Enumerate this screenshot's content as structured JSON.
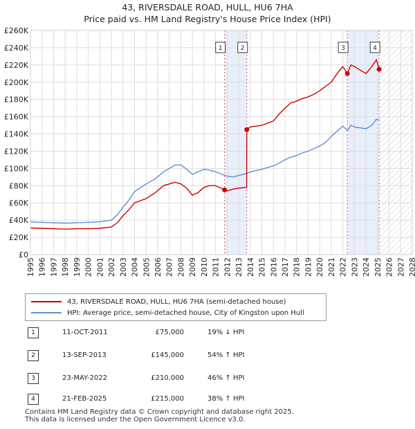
{
  "header": {
    "title": "43, RIVERSDALE ROAD, HULL, HU6 7HA",
    "subtitle": "Price paid vs. HM Land Registry's House Price Index (HPI)"
  },
  "chart_data": {
    "type": "line",
    "title": "43, RIVERSDALE ROAD, HULL, HU6 7HA",
    "subtitle": "Price paid vs. HM Land Registry's House Price Index (HPI)",
    "xlim": [
      1995,
      2028
    ],
    "ylim": [
      0,
      260000
    ],
    "x_ticks": [
      1995,
      1996,
      1997,
      1998,
      1999,
      2000,
      2001,
      2002,
      2003,
      2004,
      2005,
      2006,
      2007,
      2008,
      2009,
      2010,
      2011,
      2012,
      2013,
      2014,
      2015,
      2016,
      2017,
      2018,
      2019,
      2020,
      2021,
      2022,
      2023,
      2024,
      2025,
      2026,
      2027,
      2028
    ],
    "y_ticks": [
      0,
      20000,
      40000,
      60000,
      80000,
      100000,
      120000,
      140000,
      160000,
      180000,
      200000,
      220000,
      240000,
      260000
    ],
    "y_tick_labels": [
      "£0",
      "£20K",
      "£40K",
      "£60K",
      "£80K",
      "£100K",
      "£120K",
      "£140K",
      "£160K",
      "£180K",
      "£200K",
      "£220K",
      "£240K",
      "£260K"
    ],
    "grid": true,
    "series": [
      {
        "name": "43, RIVERSDALE ROAD, HULL, HU6 7HA (semi-detached house)",
        "color": "#cc0000",
        "points": [
          [
            1995.0,
            31000
          ],
          [
            1996.0,
            30500
          ],
          [
            1997.0,
            30000
          ],
          [
            1998.0,
            29500
          ],
          [
            1999.0,
            30000
          ],
          [
            2000.0,
            30000
          ],
          [
            2001.0,
            30500
          ],
          [
            2002.0,
            32000
          ],
          [
            2002.5,
            37000
          ],
          [
            2003.0,
            45000
          ],
          [
            2003.5,
            52000
          ],
          [
            2004.0,
            60000
          ],
          [
            2005.0,
            65000
          ],
          [
            2005.8,
            72000
          ],
          [
            2006.5,
            80000
          ],
          [
            2007.5,
            84000
          ],
          [
            2008.0,
            82000
          ],
          [
            2008.5,
            77000
          ],
          [
            2009.0,
            69000
          ],
          [
            2009.5,
            72000
          ],
          [
            2010.0,
            78000
          ],
          [
            2010.5,
            80000
          ],
          [
            2011.0,
            80000
          ],
          [
            2011.78,
            75000
          ],
          [
            2012.0,
            74000
          ],
          [
            2012.5,
            76000
          ],
          [
            2013.0,
            77000
          ],
          [
            2013.69,
            78000
          ],
          [
            2013.7,
            145000
          ],
          [
            2014.0,
            148000
          ],
          [
            2015.0,
            150000
          ],
          [
            2016.0,
            155000
          ],
          [
            2016.5,
            163000
          ],
          [
            2017.0,
            170000
          ],
          [
            2017.5,
            176000
          ],
          [
            2018.0,
            178000
          ],
          [
            2018.5,
            181000
          ],
          [
            2019.0,
            183000
          ],
          [
            2019.5,
            186000
          ],
          [
            2020.0,
            190000
          ],
          [
            2020.5,
            195000
          ],
          [
            2021.0,
            200000
          ],
          [
            2021.5,
            210000
          ],
          [
            2022.0,
            218000
          ],
          [
            2022.39,
            210000
          ],
          [
            2022.7,
            220000
          ],
          [
            2023.0,
            218000
          ],
          [
            2023.5,
            214000
          ],
          [
            2024.0,
            210000
          ],
          [
            2024.5,
            218000
          ],
          [
            2024.9,
            226000
          ],
          [
            2025.14,
            215000
          ]
        ]
      },
      {
        "name": "HPI: Average price, semi-detached house, City of Kingston upon Hull",
        "color": "#5b8fd1",
        "points": [
          [
            1995.0,
            38000
          ],
          [
            1996.0,
            37500
          ],
          [
            1997.0,
            37000
          ],
          [
            1998.0,
            36500
          ],
          [
            1999.0,
            37000
          ],
          [
            2000.0,
            37500
          ],
          [
            2001.0,
            38000
          ],
          [
            2002.0,
            40000
          ],
          [
            2002.5,
            46000
          ],
          [
            2003.0,
            55000
          ],
          [
            2003.5,
            63000
          ],
          [
            2004.0,
            73000
          ],
          [
            2005.0,
            82000
          ],
          [
            2005.8,
            88000
          ],
          [
            2006.5,
            96000
          ],
          [
            2007.5,
            104000
          ],
          [
            2008.0,
            104000
          ],
          [
            2008.5,
            99000
          ],
          [
            2009.0,
            93000
          ],
          [
            2009.5,
            96000
          ],
          [
            2010.0,
            99000
          ],
          [
            2010.5,
            98000
          ],
          [
            2011.0,
            96000
          ],
          [
            2011.78,
            92000
          ],
          [
            2012.0,
            91000
          ],
          [
            2012.5,
            90000
          ],
          [
            2013.0,
            92000
          ],
          [
            2013.7,
            94000
          ],
          [
            2014.0,
            96000
          ],
          [
            2015.0,
            99000
          ],
          [
            2016.0,
            103000
          ],
          [
            2016.5,
            106000
          ],
          [
            2017.0,
            110000
          ],
          [
            2017.5,
            113000
          ],
          [
            2018.0,
            115000
          ],
          [
            2018.5,
            118000
          ],
          [
            2019.0,
            120000
          ],
          [
            2019.5,
            123000
          ],
          [
            2020.0,
            126000
          ],
          [
            2020.5,
            130000
          ],
          [
            2021.0,
            137000
          ],
          [
            2021.5,
            143000
          ],
          [
            2022.0,
            149000
          ],
          [
            2022.39,
            144000
          ],
          [
            2022.7,
            150000
          ],
          [
            2023.0,
            148000
          ],
          [
            2023.5,
            147000
          ],
          [
            2024.0,
            146000
          ],
          [
            2024.5,
            150000
          ],
          [
            2024.9,
            157000
          ],
          [
            2025.14,
            156000
          ]
        ]
      }
    ],
    "shaded_ranges": [
      [
        2011.78,
        2013.7
      ],
      [
        2022.39,
        2025.14
      ]
    ],
    "hatch_from": 2025.14,
    "transactions": [
      {
        "num": "1",
        "x": 2011.78,
        "y": 75000,
        "date": "11-OCT-2011",
        "price": "£75,000",
        "hpi": "19% ↓ HPI"
      },
      {
        "num": "2",
        "x": 2013.7,
        "y": 145000,
        "date": "13-SEP-2013",
        "price": "£145,000",
        "hpi": "54% ↑ HPI"
      },
      {
        "num": "3",
        "x": 2022.39,
        "y": 210000,
        "date": "23-MAY-2022",
        "price": "£210,000",
        "hpi": "46% ↑ HPI"
      },
      {
        "num": "4",
        "x": 2025.14,
        "y": 215000,
        "date": "21-FEB-2025",
        "price": "£215,000",
        "hpi": "38% ↑ HPI"
      }
    ]
  },
  "legend": {
    "entries": [
      {
        "label": "43, RIVERSDALE ROAD, HULL, HU6 7HA (semi-detached house)",
        "color": "#cc0000"
      },
      {
        "label": "HPI: Average price, semi-detached house, City of Kingston upon Hull",
        "color": "#5b8fd1"
      }
    ]
  },
  "footer": {
    "line1": "Contains HM Land Registry data © Crown copyright and database right 2025.",
    "line2": "This data is licensed under the Open Government Licence v3.0."
  }
}
